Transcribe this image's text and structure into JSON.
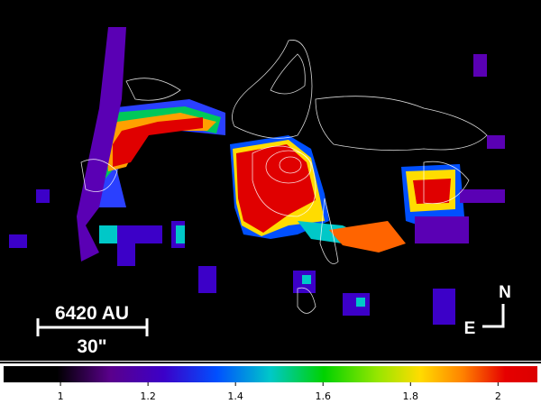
{
  "scale_bar": {
    "distance": "6420 AU",
    "angle": "30\""
  },
  "compass": {
    "north": "N",
    "east": "E"
  },
  "colorbar": {
    "lim": [
      0.87,
      2.09
    ],
    "ticks": [
      1,
      1.2,
      1.4,
      1.6,
      1.8,
      2
    ]
  }
}
